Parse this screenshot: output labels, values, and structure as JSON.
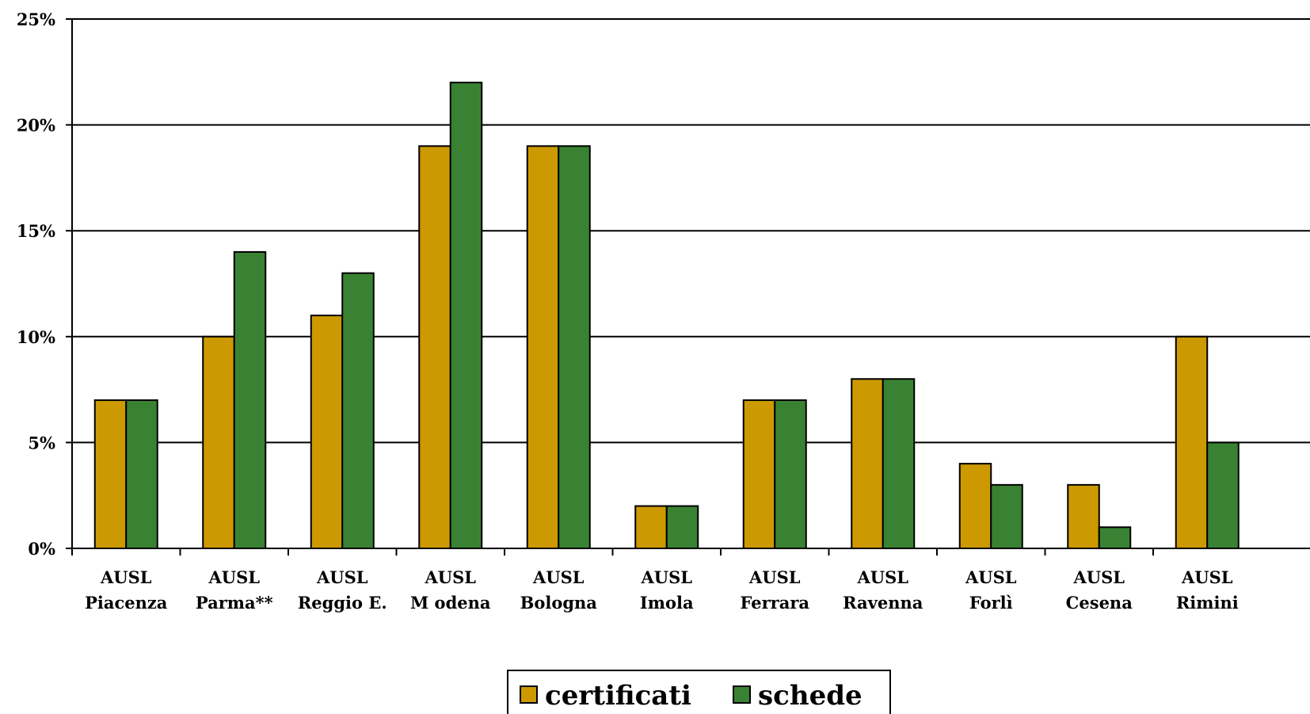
{
  "chart_data": {
    "type": "bar",
    "title": "",
    "xlabel": "",
    "ylabel": "",
    "ylim": [
      0,
      25
    ],
    "yticks": [
      "0%",
      "5%",
      "10%",
      "15%",
      "20%",
      "25%"
    ],
    "ytick_values": [
      0,
      5,
      10,
      15,
      20,
      25
    ],
    "grid": true,
    "legend_position": "bottom-center",
    "categories": [
      [
        "AUSL",
        "Piacenza"
      ],
      [
        "AUSL",
        "Parma**"
      ],
      [
        "AUSL",
        "Reggio E."
      ],
      [
        "AUSL",
        "M odena"
      ],
      [
        "AUSL",
        "Bologna"
      ],
      [
        "AUSL",
        "Imola"
      ],
      [
        "AUSL",
        "Ferrara"
      ],
      [
        "AUSL",
        "Ravenna"
      ],
      [
        "AUSL",
        "Forlì"
      ],
      [
        "AUSL",
        "Cesena"
      ],
      [
        "AUSL",
        "Rimini"
      ]
    ],
    "series": [
      {
        "name": "certificati",
        "color": "#CC9900",
        "values": [
          7,
          10,
          11,
          19,
          19,
          2,
          7,
          8,
          4,
          3,
          10
        ]
      },
      {
        "name": "schede",
        "color": "#3A8233",
        "values": [
          7,
          14,
          13,
          22,
          19,
          2,
          7,
          8,
          3,
          1,
          5
        ]
      }
    ]
  }
}
